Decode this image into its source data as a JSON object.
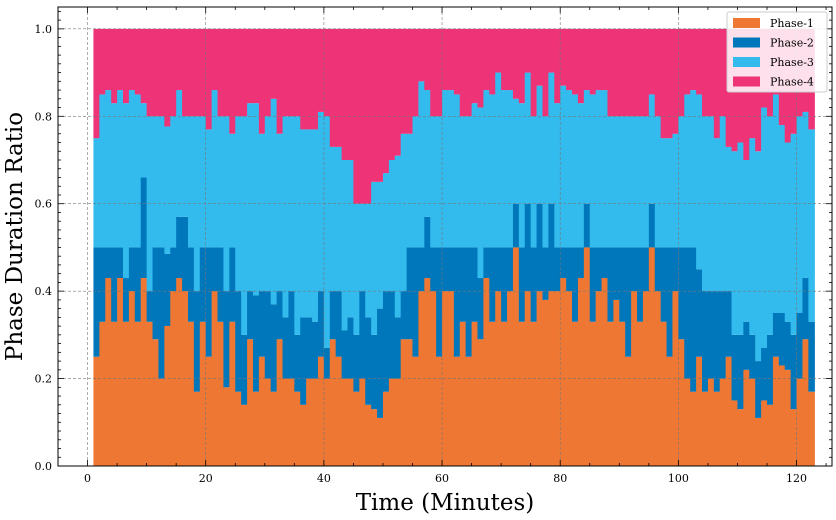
{
  "chart_data": {
    "type": "area",
    "stacked": true,
    "step": true,
    "xlabel": "Time (Minutes)",
    "ylabel": "Phase Duration Ratio",
    "xlim": [
      -5,
      126
    ],
    "ylim": [
      0,
      1.05
    ],
    "xticks": [
      0,
      20,
      40,
      60,
      80,
      100,
      120
    ],
    "xtick_labels": [
      "0",
      "20",
      "40",
      "60",
      "80",
      "100",
      "120"
    ],
    "yticks": [
      0.0,
      0.2,
      0.4,
      0.6,
      0.8,
      1.0
    ],
    "ytick_labels": [
      "0.0",
      "0.2",
      "0.4",
      "0.6",
      "0.8",
      "1.0"
    ],
    "grid": true,
    "legend_position": "top-right",
    "x_start": 1,
    "x_step": 1,
    "series": [
      {
        "name": "Phase-1",
        "color": "#ee7733",
        "values": [
          0.25,
          0.33,
          0.43,
          0.33,
          0.43,
          0.33,
          0.4,
          0.33,
          0.43,
          0.33,
          0.29,
          0.2,
          0.33,
          0.4,
          0.43,
          0.4,
          0.33,
          0.17,
          0.33,
          0.25,
          0.4,
          0.33,
          0.18,
          0.33,
          0.17,
          0.14,
          0.29,
          0.17,
          0.25,
          0.2,
          0.17,
          0.29,
          0.2,
          0.2,
          0.17,
          0.14,
          0.2,
          0.2,
          0.25,
          0.2,
          0.29,
          0.25,
          0.2,
          0.2,
          0.17,
          0.2,
          0.14,
          0.13,
          0.11,
          0.17,
          0.2,
          0.2,
          0.29,
          0.29,
          0.25,
          0.4,
          0.43,
          0.4,
          0.25,
          0.4,
          0.4,
          0.25,
          0.33,
          0.25,
          0.33,
          0.29,
          0.43,
          0.33,
          0.4,
          0.33,
          0.4,
          0.5,
          0.33,
          0.4,
          0.33,
          0.4,
          0.38,
          0.4,
          0.4,
          0.43,
          0.4,
          0.33,
          0.43,
          0.5,
          0.33,
          0.4,
          0.43,
          0.33,
          0.38,
          0.33,
          0.25,
          0.4,
          0.33,
          0.4,
          0.5,
          0.4,
          0.33,
          0.25,
          0.4,
          0.29,
          0.2,
          0.17,
          0.25,
          0.17,
          0.2,
          0.17,
          0.2,
          0.25,
          0.15,
          0.13,
          0.22,
          0.2,
          0.11,
          0.15,
          0.14,
          0.25,
          0.23,
          0.22,
          0.13,
          0.2,
          0.29,
          0.17
        ]
      },
      {
        "name": "Phase-2",
        "color": "#0077bb",
        "values": [
          0.25,
          0.17,
          0.07,
          0.17,
          0.07,
          0.1,
          0.1,
          0.17,
          0.23,
          0.07,
          0.21,
          0.3,
          0.17,
          0.1,
          0.14,
          0.17,
          0.17,
          0.23,
          0.17,
          0.25,
          0.1,
          0.17,
          0.22,
          0.17,
          0.23,
          0.16,
          0.11,
          0.22,
          0.15,
          0.2,
          0.2,
          0.11,
          0.14,
          0.2,
          0.13,
          0.2,
          0.14,
          0.13,
          0.15,
          0.07,
          0.11,
          0.15,
          0.11,
          0.14,
          0.13,
          0.2,
          0.2,
          0.17,
          0.25,
          0.23,
          0.2,
          0.14,
          0.11,
          0.21,
          0.25,
          0.1,
          0.14,
          0.1,
          0.25,
          0.1,
          0.1,
          0.25,
          0.17,
          0.25,
          0.17,
          0.14,
          0.07,
          0.17,
          0.1,
          0.17,
          0.1,
          0.1,
          0.17,
          0.2,
          0.17,
          0.2,
          0.12,
          0.2,
          0.1,
          0.07,
          0.1,
          0.17,
          0.07,
          0.1,
          0.17,
          0.1,
          0.07,
          0.17,
          0.12,
          0.17,
          0.25,
          0.1,
          0.17,
          0.1,
          0.1,
          0.1,
          0.17,
          0.25,
          0.1,
          0.21,
          0.3,
          0.33,
          0.2,
          0.23,
          0.2,
          0.23,
          0.2,
          0.15,
          0.15,
          0.17,
          0.11,
          0.1,
          0.13,
          0.12,
          0.16,
          0.1,
          0.12,
          0.11,
          0.17,
          0.15,
          0.14,
          0.16
        ]
      },
      {
        "name": "Phase-3",
        "color": "#33bbee",
        "values": [
          0.25,
          0.35,
          0.36,
          0.33,
          0.36,
          0.4,
          0.36,
          0.35,
          0.17,
          0.4,
          0.3,
          0.3,
          0.3,
          0.3,
          0.29,
          0.23,
          0.3,
          0.4,
          0.3,
          0.27,
          0.36,
          0.3,
          0.4,
          0.26,
          0.4,
          0.5,
          0.43,
          0.44,
          0.36,
          0.4,
          0.47,
          0.36,
          0.46,
          0.4,
          0.5,
          0.43,
          0.43,
          0.44,
          0.41,
          0.53,
          0.33,
          0.33,
          0.39,
          0.36,
          0.3,
          0.2,
          0.26,
          0.35,
          0.29,
          0.27,
          0.3,
          0.37,
          0.36,
          0.26,
          0.3,
          0.38,
          0.29,
          0.3,
          0.3,
          0.36,
          0.36,
          0.35,
          0.3,
          0.3,
          0.33,
          0.39,
          0.36,
          0.35,
          0.4,
          0.36,
          0.36,
          0.24,
          0.33,
          0.3,
          0.3,
          0.27,
          0.3,
          0.3,
          0.33,
          0.37,
          0.36,
          0.35,
          0.33,
          0.26,
          0.35,
          0.36,
          0.36,
          0.3,
          0.3,
          0.3,
          0.3,
          0.3,
          0.3,
          0.3,
          0.25,
          0.3,
          0.25,
          0.25,
          0.26,
          0.3,
          0.35,
          0.36,
          0.4,
          0.4,
          0.4,
          0.35,
          0.4,
          0.33,
          0.42,
          0.44,
          0.37,
          0.45,
          0.48,
          0.55,
          0.5,
          0.5,
          0.43,
          0.41,
          0.46,
          0.45,
          0.38,
          0.44
        ]
      },
      {
        "name": "Phase-4",
        "color": "#ee3377",
        "values": [
          0.25,
          0.15,
          0.14,
          0.17,
          0.14,
          0.17,
          0.14,
          0.15,
          0.17,
          0.2,
          0.2,
          0.2,
          0.23,
          0.2,
          0.14,
          0.2,
          0.2,
          0.2,
          0.2,
          0.23,
          0.14,
          0.2,
          0.2,
          0.24,
          0.2,
          0.2,
          0.17,
          0.17,
          0.24,
          0.2,
          0.16,
          0.24,
          0.2,
          0.2,
          0.2,
          0.23,
          0.23,
          0.23,
          0.19,
          0.2,
          0.27,
          0.27,
          0.3,
          0.3,
          0.4,
          0.4,
          0.4,
          0.35,
          0.35,
          0.33,
          0.3,
          0.29,
          0.24,
          0.24,
          0.2,
          0.12,
          0.14,
          0.2,
          0.2,
          0.14,
          0.14,
          0.15,
          0.2,
          0.2,
          0.17,
          0.18,
          0.14,
          0.15,
          0.1,
          0.14,
          0.14,
          0.16,
          0.17,
          0.1,
          0.2,
          0.13,
          0.2,
          0.1,
          0.17,
          0.13,
          0.14,
          0.15,
          0.17,
          0.14,
          0.15,
          0.14,
          0.14,
          0.2,
          0.2,
          0.2,
          0.2,
          0.2,
          0.2,
          0.2,
          0.15,
          0.2,
          0.25,
          0.25,
          0.24,
          0.2,
          0.15,
          0.14,
          0.15,
          0.2,
          0.2,
          0.25,
          0.2,
          0.27,
          0.28,
          0.26,
          0.3,
          0.25,
          0.28,
          0.18,
          0.2,
          0.15,
          0.22,
          0.26,
          0.24,
          0.2,
          0.19,
          0.23
        ]
      }
    ]
  }
}
